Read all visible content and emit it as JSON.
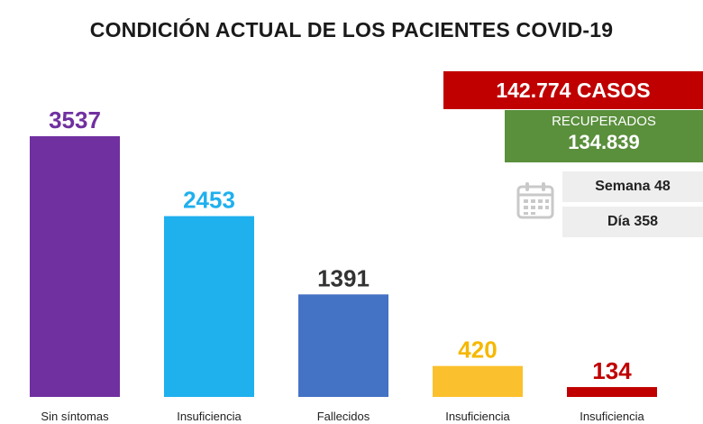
{
  "title": "CONDICIÓN ACTUAL DE LOS PACIENTES COVID-19",
  "summary": {
    "cases": "142.774 CASOS",
    "recovered_label": "RECUPERADOS",
    "recovered_value": "134.839",
    "week": "Semana 48",
    "day": "Día 358"
  },
  "icons": {
    "calendar": "calendar-icon"
  },
  "colors": {
    "cases_bg": "#c00000",
    "recovered_bg": "#5a8f3c",
    "info_bg": "#eeeeee"
  },
  "chart_data": {
    "type": "bar",
    "title": "CONDICIÓN ACTUAL DE LOS PACIENTES COVID-19",
    "categories": [
      "Sin síntomas",
      "Insuficiencia",
      "Fallecidos",
      "Insuficiencia",
      "Insuficiencia"
    ],
    "values": [
      3537,
      2453,
      1391,
      420,
      134
    ],
    "colors": [
      "#7030a0",
      "#1fb0ee",
      "#4472c4",
      "#fbc02d",
      "#c00000"
    ],
    "label_colors": [
      "#7030a0",
      "#1fb0ee",
      "#333333",
      "#f5b800",
      "#c00000"
    ],
    "ylim": [
      0,
      3537
    ],
    "grid": false,
    "legend": "none"
  }
}
